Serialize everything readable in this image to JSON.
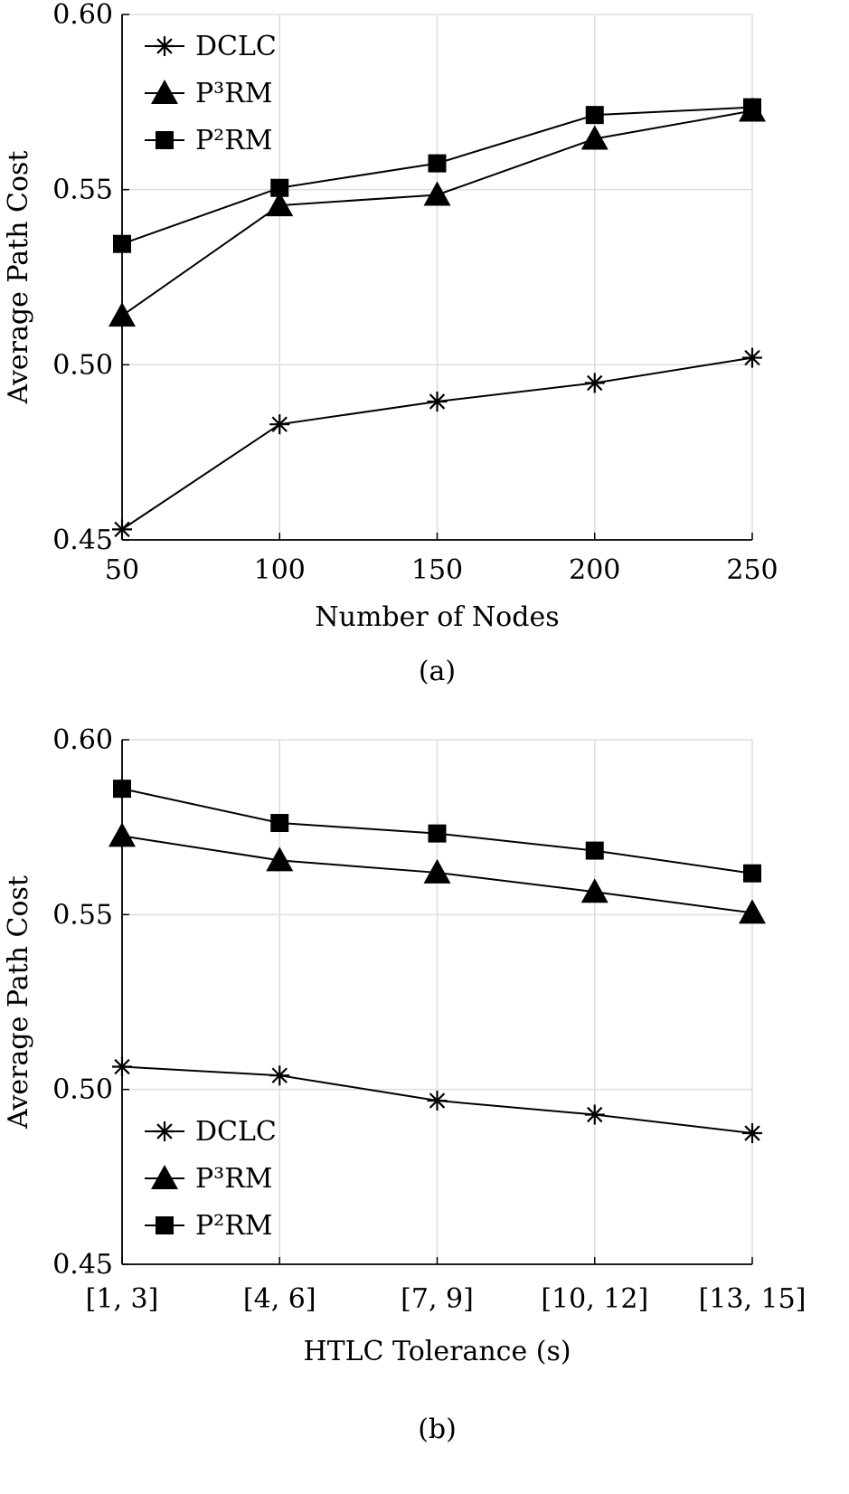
{
  "chart_data": [
    {
      "type": "line",
      "caption": "(a)",
      "xlabel": "Number of Nodes",
      "ylabel": "Average Path Cost",
      "categories": [
        "50",
        "100",
        "150",
        "200",
        "250"
      ],
      "x": [
        50,
        100,
        150,
        200,
        250
      ],
      "xlim": [
        50,
        250
      ],
      "ylim": [
        0.45,
        0.6
      ],
      "yticks": [
        0.45,
        0.5,
        0.55,
        0.6
      ],
      "ytick_labels": [
        "0.45",
        "0.50",
        "0.55",
        "0.60"
      ],
      "grid": true,
      "legend_position": "top-left",
      "series": [
        {
          "name": "DCLC",
          "marker": "asterisk",
          "values": [
            0.453,
            0.483,
            0.4895,
            0.4948,
            0.502
          ]
        },
        {
          "name": "P³RM",
          "marker": "triangle",
          "values": [
            0.514,
            0.5455,
            0.5485,
            0.5645,
            0.5725
          ]
        },
        {
          "name": "P²RM",
          "marker": "square",
          "values": [
            0.5345,
            0.5505,
            0.5575,
            0.5713,
            0.5735
          ]
        }
      ]
    },
    {
      "type": "line",
      "caption": "(b)",
      "xlabel": "HTLC Tolerance (s)",
      "ylabel": "Average Path Cost",
      "categories": [
        "[1, 3]",
        "[4, 6]",
        "[7, 9]",
        "[10, 12]",
        "[13, 15]"
      ],
      "ylim": [
        0.45,
        0.6
      ],
      "yticks": [
        0.45,
        0.5,
        0.55,
        0.6
      ],
      "ytick_labels": [
        "0.45",
        "0.50",
        "0.55",
        "0.60"
      ],
      "grid": true,
      "legend_position": "bottom-left",
      "series": [
        {
          "name": "DCLC",
          "marker": "asterisk",
          "values": [
            0.5065,
            0.504,
            0.4968,
            0.4928,
            0.4875
          ]
        },
        {
          "name": "P³RM",
          "marker": "triangle",
          "values": [
            0.5725,
            0.5655,
            0.562,
            0.5565,
            0.5505
          ]
        },
        {
          "name": "P²RM",
          "marker": "square",
          "values": [
            0.586,
            0.5762,
            0.5732,
            0.5683,
            0.5618
          ]
        }
      ]
    }
  ]
}
